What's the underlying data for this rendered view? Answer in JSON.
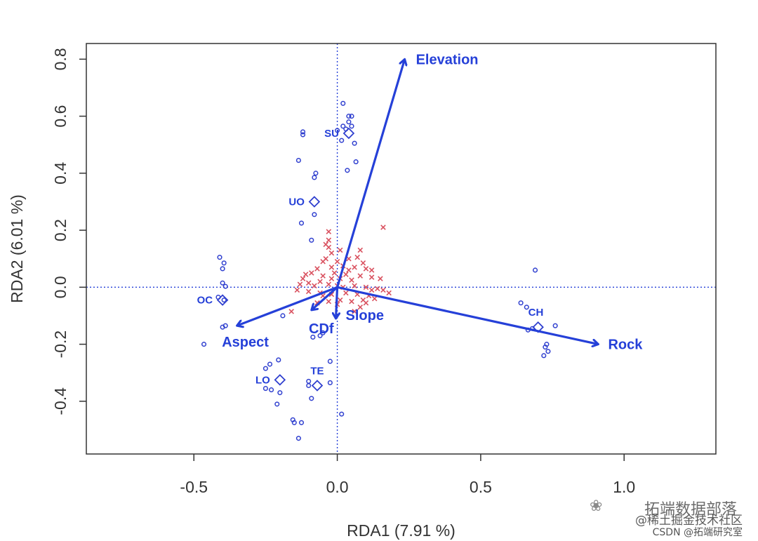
{
  "chart_data": {
    "type": "scatter",
    "xlabel": "RDA1 (7.91 %)",
    "ylabel": "RDA2 (6.01 %)",
    "xlim": [
      -0.875,
      1.32
    ],
    "ylim": [
      -0.585,
      0.855
    ],
    "x_ticks": [
      -0.5,
      0.0,
      0.5,
      1.0
    ],
    "x_tick_labels": [
      "-0.5",
      "0.0",
      "0.5",
      "1.0"
    ],
    "y_ticks": [
      -0.4,
      -0.2,
      0.0,
      0.2,
      0.4,
      0.6,
      0.8
    ],
    "y_tick_labels": [
      "-0.4",
      "-0.2",
      "0.0",
      "0.2",
      "0.4",
      "0.6",
      "0.8"
    ],
    "reference_lines": {
      "x": 0,
      "y": 0,
      "style": "dotted",
      "color": "#2540d8"
    },
    "colors": {
      "sites": "#2f3fcf",
      "species": "#d9515f",
      "arrows": "#2540d8",
      "axis": "#333333"
    },
    "site_points": [
      [
        0.02,
        0.645
      ],
      [
        0.04,
        0.6
      ],
      [
        0.05,
        0.6
      ],
      [
        0.04,
        0.58
      ],
      [
        0.02,
        0.565
      ],
      [
        0.05,
        0.565
      ],
      [
        0.03,
        0.555
      ],
      [
        0.0,
        0.55
      ],
      [
        0.015,
        0.515
      ],
      [
        0.06,
        0.505
      ],
      [
        0.065,
        0.44
      ],
      [
        0.035,
        0.41
      ],
      [
        -0.12,
        0.545
      ],
      [
        -0.12,
        0.535
      ],
      [
        -0.135,
        0.445
      ],
      [
        -0.075,
        0.4
      ],
      [
        -0.08,
        0.385
      ],
      [
        -0.08,
        0.255
      ],
      [
        -0.125,
        0.225
      ],
      [
        -0.09,
        0.165
      ],
      [
        -0.41,
        0.105
      ],
      [
        -0.395,
        0.085
      ],
      [
        -0.4,
        0.065
      ],
      [
        -0.4,
        0.015
      ],
      [
        -0.39,
        0.003
      ],
      [
        -0.415,
        -0.035
      ],
      [
        -0.395,
        -0.045
      ],
      [
        -0.4,
        -0.14
      ],
      [
        -0.39,
        -0.135
      ],
      [
        -0.465,
        -0.2
      ],
      [
        -0.19,
        -0.1
      ],
      [
        -0.085,
        -0.175
      ],
      [
        -0.06,
        -0.17
      ],
      [
        -0.05,
        -0.16
      ],
      [
        -0.205,
        -0.255
      ],
      [
        -0.235,
        -0.27
      ],
      [
        -0.25,
        -0.285
      ],
      [
        -0.25,
        -0.355
      ],
      [
        -0.23,
        -0.36
      ],
      [
        -0.2,
        -0.37
      ],
      [
        -0.21,
        -0.41
      ],
      [
        -0.155,
        -0.465
      ],
      [
        -0.15,
        -0.475
      ],
      [
        -0.125,
        -0.475
      ],
      [
        -0.135,
        -0.53
      ],
      [
        -0.025,
        -0.26
      ],
      [
        -0.1,
        -0.33
      ],
      [
        -0.1,
        -0.345
      ],
      [
        -0.09,
        -0.39
      ],
      [
        -0.025,
        -0.335
      ],
      [
        0.015,
        -0.445
      ],
      [
        0.69,
        0.06
      ],
      [
        0.64,
        -0.055
      ],
      [
        0.66,
        -0.07
      ],
      [
        0.68,
        -0.145
      ],
      [
        0.665,
        -0.15
      ],
      [
        0.76,
        -0.135
      ],
      [
        0.73,
        -0.2
      ],
      [
        0.725,
        -0.21
      ],
      [
        0.735,
        -0.225
      ],
      [
        0.72,
        -0.24
      ]
    ],
    "species_points": [
      [
        0.16,
        0.21
      ],
      [
        -0.03,
        0.195
      ],
      [
        -0.03,
        0.165
      ],
      [
        -0.04,
        0.15
      ],
      [
        -0.03,
        0.14
      ],
      [
        -0.02,
        0.12
      ],
      [
        0.01,
        0.13
      ],
      [
        0.08,
        0.13
      ],
      [
        0.07,
        0.105
      ],
      [
        -0.04,
        0.1
      ],
      [
        -0.05,
        0.09
      ],
      [
        0.0,
        0.09
      ],
      [
        0.04,
        0.1
      ],
      [
        0.09,
        0.085
      ],
      [
        0.06,
        0.07
      ],
      [
        0.1,
        0.065
      ],
      [
        0.12,
        0.06
      ],
      [
        0.02,
        0.075
      ],
      [
        -0.02,
        0.07
      ],
      [
        -0.07,
        0.065
      ],
      [
        -0.09,
        0.05
      ],
      [
        -0.11,
        0.045
      ],
      [
        -0.05,
        0.04
      ],
      [
        0.03,
        0.045
      ],
      [
        0.08,
        0.04
      ],
      [
        0.12,
        0.035
      ],
      [
        0.15,
        0.03
      ],
      [
        -0.02,
        0.03
      ],
      [
        0.01,
        0.03
      ],
      [
        0.05,
        0.025
      ],
      [
        -0.06,
        0.02
      ],
      [
        -0.1,
        0.015
      ],
      [
        -0.13,
        0.01
      ],
      [
        -0.08,
        0.005
      ],
      [
        -0.03,
        0.01
      ],
      [
        0.0,
        0.005
      ],
      [
        0.02,
        0.0
      ],
      [
        0.06,
        0.005
      ],
      [
        0.1,
        0.0
      ],
      [
        0.14,
        -0.005
      ],
      [
        0.16,
        -0.01
      ],
      [
        0.18,
        -0.02
      ],
      [
        -0.14,
        -0.01
      ],
      [
        -0.1,
        -0.015
      ],
      [
        -0.06,
        -0.02
      ],
      [
        -0.02,
        -0.025
      ],
      [
        0.03,
        -0.02
      ],
      [
        0.07,
        -0.025
      ],
      [
        0.11,
        -0.03
      ],
      [
        0.13,
        -0.04
      ],
      [
        0.09,
        -0.045
      ],
      [
        0.05,
        -0.05
      ],
      [
        0.01,
        -0.045
      ],
      [
        -0.03,
        -0.05
      ],
      [
        -0.07,
        -0.055
      ],
      [
        -0.16,
        -0.085
      ],
      [
        0.08,
        -0.07
      ],
      [
        0.06,
        -0.085
      ],
      [
        0.1,
        -0.055
      ],
      [
        -0.12,
        0.03
      ],
      [
        -0.05,
        -0.03
      ],
      [
        0.04,
        0.06
      ],
      [
        -0.01,
        0.05
      ],
      [
        0.12,
        -0.01
      ],
      [
        0.0,
        -0.06
      ]
    ],
    "group_centroids": [
      {
        "label": "SU",
        "x": 0.04,
        "y": 0.54
      },
      {
        "label": "UO",
        "x": -0.08,
        "y": 0.3
      },
      {
        "label": "OC",
        "x": -0.4,
        "y": -0.045
      },
      {
        "label": "CH",
        "x": 0.7,
        "y": -0.14
      },
      {
        "label": "LO",
        "x": -0.2,
        "y": -0.325
      },
      {
        "label": "TE",
        "x": -0.07,
        "y": -0.345
      }
    ],
    "biplot_arrows": [
      {
        "label": "Elevation",
        "x": 0.235,
        "y": 0.8
      },
      {
        "label": "Rock",
        "x": 0.91,
        "y": -0.2
      },
      {
        "label": "Aspect",
        "x": -0.35,
        "y": -0.135
      },
      {
        "label": "Slope",
        "x": -0.005,
        "y": -0.11
      },
      {
        "label": "CDf",
        "x": -0.09,
        "y": -0.08
      }
    ]
  },
  "watermark": {
    "main": "拓端数据部落",
    "sub1": "@稀土掘金技术社区",
    "sub2": "CSDN @拓端研究室"
  }
}
